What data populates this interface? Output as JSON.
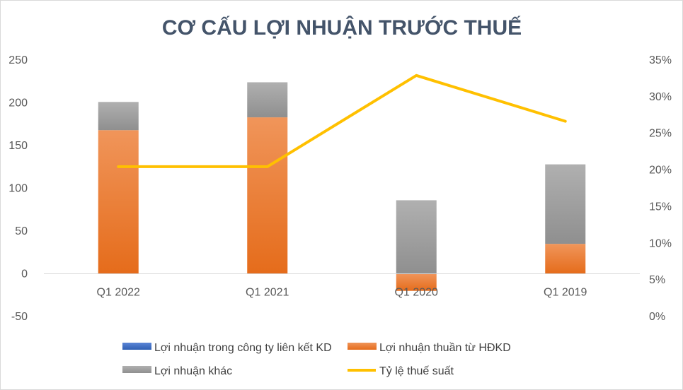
{
  "chart_data": {
    "type": "bar",
    "stacked": true,
    "title": "CƠ CẤU LỢI NHUẬN TRƯỚC THUẾ",
    "categories": [
      "Q1 2022",
      "Q1 2021",
      "Q1 2020",
      "Q1 2019"
    ],
    "series": [
      {
        "name": "Lợi nhuận trong công ty liên kết KD",
        "type": "bar",
        "axis": "left",
        "color": "#4472c4",
        "values": [
          0,
          0,
          0,
          0
        ]
      },
      {
        "name": "Lợi nhuận thuần từ HĐKD",
        "type": "bar",
        "axis": "left",
        "color": "#ed7d31",
        "values": [
          168,
          183,
          -20,
          35
        ]
      },
      {
        "name": "Lợi nhuận khác",
        "type": "bar",
        "axis": "left",
        "color": "#a5a5a5",
        "values": [
          33,
          41,
          86,
          93
        ]
      },
      {
        "name": "Tỷ lệ thuế suất",
        "type": "line",
        "axis": "right",
        "color": "#ffc000",
        "values": [
          0.2045,
          0.2045,
          0.329,
          0.2665
        ]
      }
    ],
    "y_left": {
      "ylim": [
        -50,
        250
      ],
      "ticks": [
        -50,
        0,
        50,
        100,
        150,
        200,
        250
      ],
      "tick_labels": [
        "-50",
        "0",
        "50",
        "100",
        "150",
        "200",
        "250"
      ]
    },
    "y_right": {
      "ylim": [
        0,
        0.35
      ],
      "ticks": [
        0,
        0.05,
        0.1,
        0.15,
        0.2,
        0.25,
        0.3,
        0.35
      ],
      "tick_labels": [
        "0%",
        "5%",
        "10%",
        "15%",
        "20%",
        "25%",
        "30%",
        "35%"
      ]
    },
    "xlabel": "",
    "ylabel": "",
    "grid": false,
    "legend_position": "bottom"
  }
}
